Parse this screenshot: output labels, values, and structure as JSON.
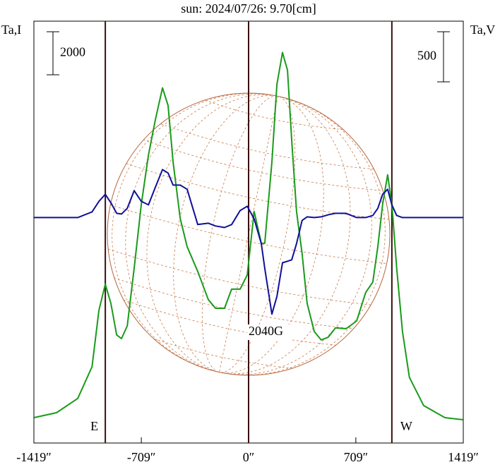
{
  "chart_data": {
    "type": "line",
    "title": "sun: 2024/07/26: 9.70[cm]",
    "y_label": "Ta,I",
    "y2_label": "Ta,V",
    "annotation": "2040G",
    "x": [
      -1418,
      -1269,
      -1129,
      -1035,
      -989,
      -947,
      -910,
      -872,
      -840,
      -802,
      -756,
      -709,
      -662,
      -616,
      -569,
      -532,
      -499,
      -452,
      -406,
      -336,
      -266,
      -219,
      -159,
      -112,
      -56,
      -9,
      37,
      84,
      107,
      154,
      187,
      224,
      257,
      285,
      317,
      354,
      387,
      434,
      480,
      527,
      574,
      644,
      714,
      774,
      821,
      854,
      886,
      919,
      947,
      979,
      1017,
      1063,
      1157,
      1297,
      1418
    ],
    "series": [
      {
        "color": "#1a9a1a",
        "values": [
          1180,
          1410,
          2070,
          3540,
          6170,
          7380,
          6490,
          5020,
          4850,
          5440,
          8130,
          11090,
          13380,
          15020,
          16500,
          15680,
          13050,
          10430,
          9120,
          7970,
          6660,
          6260,
          6260,
          7150,
          7150,
          7810,
          10760,
          9280,
          9280,
          13050,
          16660,
          18140,
          17320,
          14040,
          10760,
          8790,
          6490,
          5180,
          4790,
          4920,
          5350,
          5310,
          5670,
          6990,
          7480,
          9120,
          11090,
          12460,
          11090,
          8130,
          5180,
          3050,
          1740,
          1180,
          1080
        ]
      },
      {
        "color": "#10109a",
        "axis": "y2",
        "values": [
          0,
          0,
          0,
          56,
          162,
          232,
          148,
          42,
          35,
          92,
          268,
          162,
          127,
          303,
          479,
          444,
          324,
          324,
          282,
          -70,
          -56,
          -84,
          -99,
          -70,
          70,
          113,
          -14,
          -260,
          -507,
          -964,
          -788,
          -451,
          -436,
          -422,
          -260,
          -28,
          7,
          0,
          7,
          28,
          42,
          42,
          0,
          0,
          21,
          92,
          232,
          282,
          127,
          21,
          0,
          0,
          0,
          0,
          0
        ]
      }
    ],
    "xlim": [
      -1419,
      1419
    ],
    "xticks": [
      {
        "value": -1419,
        "label": "-1419″"
      },
      {
        "value": -709,
        "label": "-709″"
      },
      {
        "value": 0,
        "label": "0″"
      },
      {
        "value": 709,
        "label": "709″"
      },
      {
        "value": 1419,
        "label": "1419″"
      }
    ],
    "ylim": [
      0,
      19600
    ],
    "y2lim": [
      -2250,
      1960
    ],
    "scale_bars": [
      {
        "value": 2000,
        "axis": "y"
      },
      {
        "value": 500,
        "axis": "y2"
      }
    ],
    "vlines": [
      {
        "value": -947,
        "label": "E"
      },
      {
        "value": 0
      },
      {
        "value": 947,
        "label": "W"
      }
    ],
    "title_color": "#1a1a7a",
    "vline_color": "#3a1010"
  }
}
